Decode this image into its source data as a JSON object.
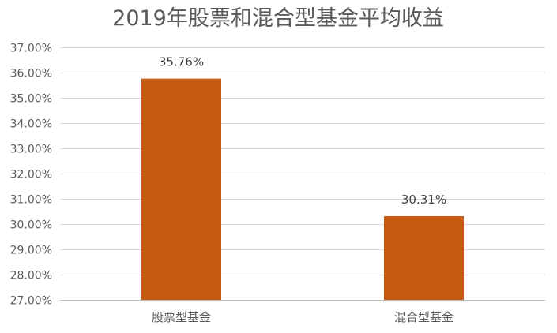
{
  "chart_data": {
    "type": "bar",
    "title": "2019年股票和混合型基金平均收益",
    "categories": [
      "股票型基金",
      "混合型基金"
    ],
    "values": [
      35.76,
      30.31
    ],
    "data_labels": [
      "35.76%",
      "30.31%"
    ],
    "ylim": [
      27,
      37
    ],
    "yticks": [
      27,
      28,
      29,
      30,
      31,
      32,
      33,
      34,
      35,
      36,
      37
    ],
    "ytick_labels": [
      "27.00%",
      "28.00%",
      "29.00%",
      "30.00%",
      "31.00%",
      "32.00%",
      "33.00%",
      "34.00%",
      "35.00%",
      "36.00%",
      "37.00%"
    ],
    "grid": true,
    "legend": "none",
    "bar_color": "#c55a11"
  }
}
